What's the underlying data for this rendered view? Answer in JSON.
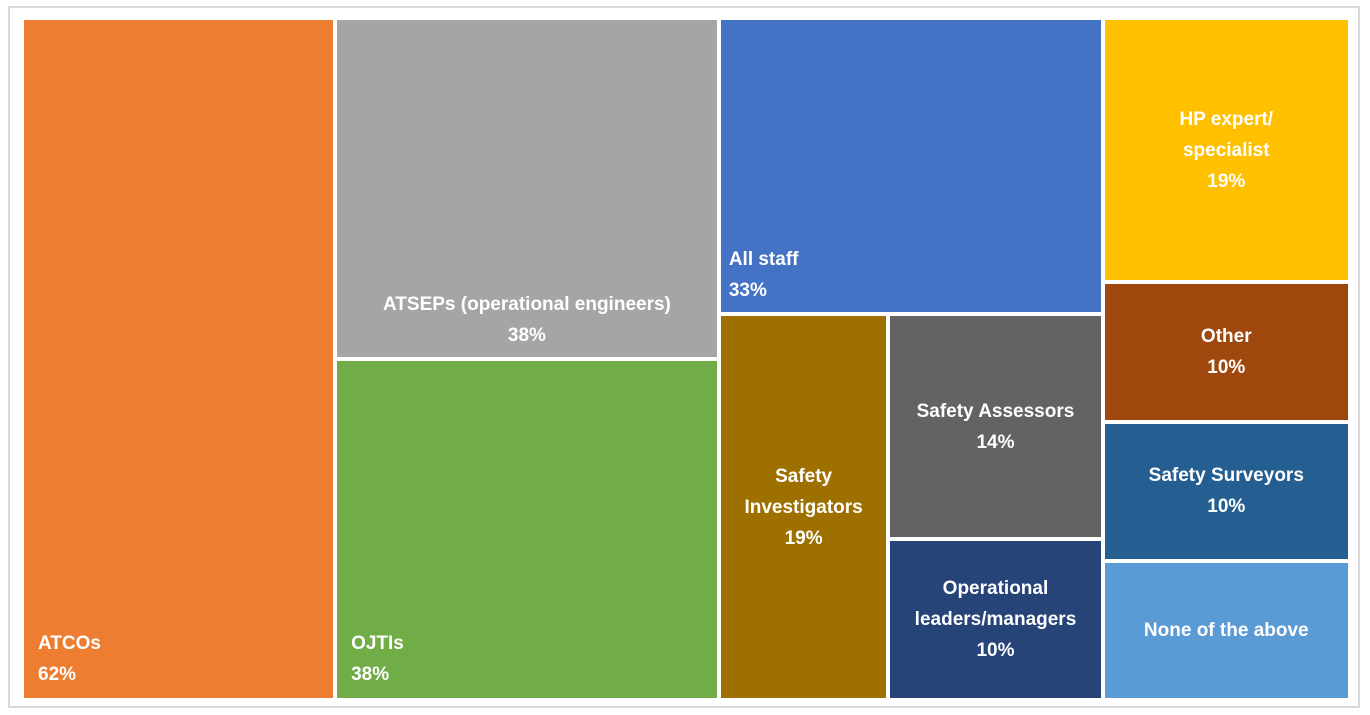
{
  "chart_data": {
    "type": "treemap",
    "categories": [
      "ATCOs",
      "ATSEPs (operational engineers)",
      "OJTIs",
      "All staff",
      "Safety Investigators",
      "Safety Assessors",
      "Operational leaders/managers",
      "HP expert/ specialist",
      "Other",
      "Safety Surveyors",
      "None of the above"
    ],
    "values": [
      62,
      38,
      38,
      33,
      19,
      14,
      10,
      19,
      10,
      10,
      10
    ],
    "value_labels": [
      "62%",
      "38%",
      "38%",
      "33%",
      "19%",
      "14%",
      "10%",
      "19%",
      "10%",
      "10%",
      ""
    ],
    "colors": [
      "#ed7d31",
      "#a5a5a5",
      "#70ad47",
      "#4472c4",
      "#9e7000",
      "#636363",
      "#264478",
      "#ffc000",
      "#9e480e",
      "#255e91",
      "#5b9bd5"
    ]
  }
}
